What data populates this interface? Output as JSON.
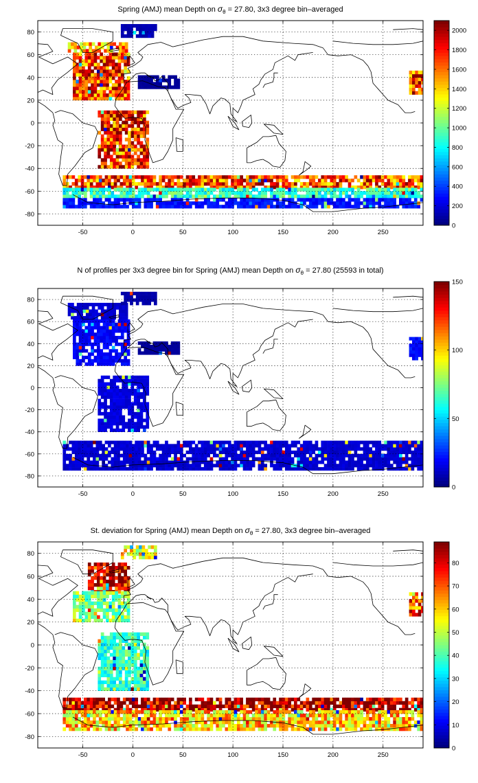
{
  "chart_data": [
    {
      "type": "heatmap",
      "title_pre": "Spring (AMJ) mean Depth on ",
      "title_sym": "σ",
      "title_sub": "θ",
      "title_post": " = 27.80, 3x3 degree bin–averaged",
      "x_ticks": [
        "-50",
        "0",
        "50",
        "100",
        "150",
        "200",
        "250"
      ],
      "x_tick_values": [
        -50,
        0,
        50,
        100,
        150,
        200,
        250
      ],
      "y_ticks": [
        "80",
        "60",
        "40",
        "20",
        "0",
        "-20",
        "-40",
        "-60",
        "-80"
      ],
      "y_tick_values": [
        80,
        60,
        40,
        20,
        0,
        -20,
        -40,
        -60,
        -80
      ],
      "xlim": [
        -95,
        290
      ],
      "ylim": [
        -90,
        90
      ],
      "grid": true,
      "colorbar": {
        "range": [
          0,
          2100
        ],
        "ticks": [
          "2000",
          "1800",
          "1600",
          "1400",
          "1200",
          "1000",
          "800",
          "600",
          "400",
          "200",
          "0"
        ],
        "tick_values": [
          2000,
          1800,
          1600,
          1400,
          1200,
          1000,
          800,
          600,
          400,
          200,
          0
        ]
      },
      "regions": [
        {
          "x": [
            -60,
            -5
          ],
          "y": [
            20,
            60
          ],
          "value": 1750
        },
        {
          "x": [
            -35,
            15
          ],
          "y": [
            -40,
            10
          ],
          "value": 1800
        },
        {
          "x": [
            -65,
            -5
          ],
          "y": [
            62,
            70
          ],
          "value": 1500
        },
        {
          "x": [
            -12,
            22
          ],
          "y": [
            75,
            85
          ],
          "value": 100
        },
        {
          "x": [
            5,
            45
          ],
          "y": [
            30,
            42
          ],
          "value": 50
        },
        {
          "x": [
            -70,
            290
          ],
          "y": [
            -58,
            -48
          ],
          "value": 1700
        },
        {
          "x": [
            -70,
            290
          ],
          "y": [
            -66,
            -58
          ],
          "value": 900
        },
        {
          "x": [
            -70,
            290
          ],
          "y": [
            -75,
            -66
          ],
          "value": 300
        },
        {
          "x": [
            276,
            290
          ],
          "y": [
            25,
            45
          ],
          "value": 1750
        }
      ]
    },
    {
      "type": "heatmap",
      "title_pre": "N of profiles per 3x3 degree bin for Spring (AMJ) mean Depth on ",
      "title_sym": "σ",
      "title_sub": "θ",
      "title_post": " = 27.80 (25593 in total)",
      "x_ticks": [
        "-50",
        "0",
        "50",
        "100",
        "150",
        "200",
        "250"
      ],
      "x_tick_values": [
        -50,
        0,
        50,
        100,
        150,
        200,
        250
      ],
      "y_ticks": [
        "80",
        "60",
        "40",
        "20",
        "0",
        "-20",
        "-40",
        "-60",
        "-80"
      ],
      "y_tick_values": [
        80,
        60,
        40,
        20,
        0,
        -20,
        -40,
        -60,
        -80
      ],
      "xlim": [
        -95,
        290
      ],
      "ylim": [
        -90,
        90
      ],
      "grid": true,
      "colorbar": {
        "range": [
          0,
          150
        ],
        "ticks": [
          "150",
          "100",
          "50",
          "0"
        ],
        "tick_values": [
          150,
          100,
          50,
          0
        ]
      },
      "regions": [
        {
          "x": [
            -60,
            -5
          ],
          "y": [
            20,
            60
          ],
          "value": 18
        },
        {
          "x": [
            -35,
            15
          ],
          "y": [
            -40,
            10
          ],
          "value": 14
        },
        {
          "x": [
            -65,
            -5
          ],
          "y": [
            62,
            75
          ],
          "value": 12
        },
        {
          "x": [
            -12,
            22
          ],
          "y": [
            75,
            85
          ],
          "value": 6
        },
        {
          "x": [
            5,
            45
          ],
          "y": [
            30,
            42
          ],
          "value": 4
        },
        {
          "x": [
            -70,
            290
          ],
          "y": [
            -75,
            -48
          ],
          "value": 12
        },
        {
          "x": [
            276,
            290
          ],
          "y": [
            25,
            45
          ],
          "value": 20
        }
      ]
    },
    {
      "type": "heatmap",
      "title_pre": "St. deviation for Spring (AMJ) mean Depth on ",
      "title_sym": "σ",
      "title_sub": "θ",
      "title_post": " = 27.80, 3x3 degree bin–averaged",
      "x_ticks": [
        "-50",
        "0",
        "50",
        "100",
        "150",
        "200",
        "250"
      ],
      "x_tick_values": [
        -50,
        0,
        50,
        100,
        150,
        200,
        250
      ],
      "y_ticks": [
        "80",
        "60",
        "40",
        "20",
        "0",
        "-20",
        "-40",
        "-60",
        "-80"
      ],
      "y_tick_values": [
        80,
        60,
        40,
        20,
        0,
        -20,
        -40,
        -60,
        -80
      ],
      "xlim": [
        -95,
        290
      ],
      "ylim": [
        -90,
        90
      ],
      "grid": true,
      "colorbar": {
        "range": [
          0,
          89
        ],
        "ticks": [
          "80",
          "70",
          "60",
          "50",
          "40",
          "30",
          "20",
          "10",
          "0"
        ],
        "tick_values": [
          80,
          70,
          60,
          50,
          40,
          30,
          20,
          10,
          0
        ]
      },
      "regions": [
        {
          "x": [
            -45,
            -5
          ],
          "y": [
            45,
            72
          ],
          "value": 85
        },
        {
          "x": [
            -60,
            -5
          ],
          "y": [
            20,
            45
          ],
          "value": 45
        },
        {
          "x": [
            -35,
            15
          ],
          "y": [
            -40,
            10
          ],
          "value": 38
        },
        {
          "x": [
            -12,
            22
          ],
          "y": [
            75,
            85
          ],
          "value": 55
        },
        {
          "x": [
            -70,
            290
          ],
          "y": [
            -58,
            -48
          ],
          "value": 87
        },
        {
          "x": [
            -70,
            290
          ],
          "y": [
            -75,
            -58
          ],
          "value": 60
        },
        {
          "x": [
            276,
            290
          ],
          "y": [
            25,
            45
          ],
          "value": 70
        }
      ]
    }
  ]
}
